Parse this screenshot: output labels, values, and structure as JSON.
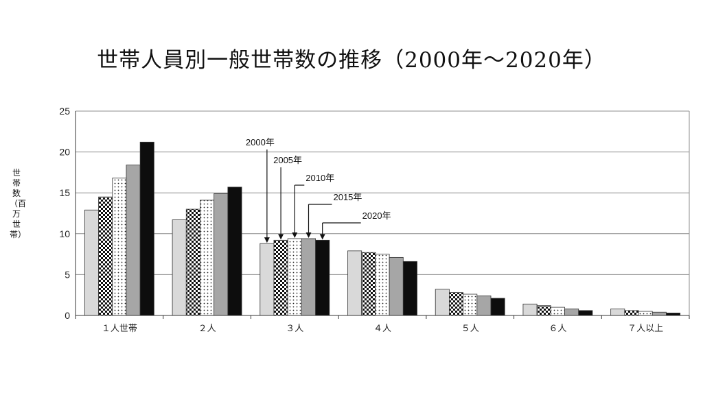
{
  "chart_data": {
    "type": "bar",
    "title": "世帯人員別一般世帯数の推移（2000年～2020年）",
    "ylabel": "世帯数（百万世帯）",
    "xlabel": "",
    "ylim": [
      0,
      25
    ],
    "yticks": [
      0,
      5,
      10,
      15,
      20,
      25
    ],
    "grid": true,
    "categories": [
      "１人世帯",
      "２人",
      "３人",
      "４人",
      "５人",
      "６人",
      "７人以上"
    ],
    "series": [
      {
        "name": "2000年",
        "color": "#d9d9d9",
        "pattern": "light-gray",
        "values": [
          12.9,
          11.7,
          8.8,
          7.9,
          3.2,
          1.4,
          0.8
        ]
      },
      {
        "name": "2005年",
        "color": "#000000",
        "pattern": "checker",
        "values": [
          14.5,
          13.0,
          9.2,
          7.7,
          2.8,
          1.2,
          0.6
        ]
      },
      {
        "name": "2010年",
        "color": "#ffffff",
        "pattern": "dots",
        "values": [
          16.8,
          14.1,
          9.4,
          7.5,
          2.6,
          1.0,
          0.5
        ]
      },
      {
        "name": "2015年",
        "color": "#a6a6a6",
        "pattern": "mid-gray",
        "values": [
          18.4,
          14.9,
          9.4,
          7.1,
          2.4,
          0.8,
          0.4
        ]
      },
      {
        "name": "2020年",
        "color": "#0d0d0d",
        "pattern": "black",
        "values": [
          21.2,
          15.7,
          9.2,
          6.6,
          2.1,
          0.6,
          0.3
        ]
      }
    ],
    "annotations": [
      "2000年",
      "2005年",
      "2010年",
      "2015年",
      "2020年"
    ],
    "annotation_category": "３人"
  }
}
